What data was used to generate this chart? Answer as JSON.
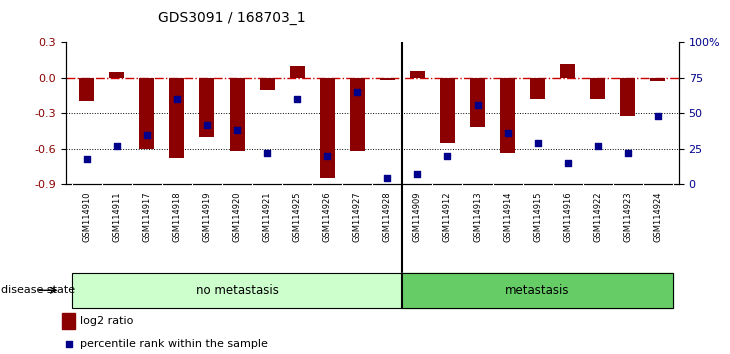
{
  "title": "GDS3091 / 168703_1",
  "samples": [
    "GSM114910",
    "GSM114911",
    "GSM114917",
    "GSM114918",
    "GSM114919",
    "GSM114920",
    "GSM114921",
    "GSM114925",
    "GSM114926",
    "GSM114927",
    "GSM114928",
    "GSM114909",
    "GSM114912",
    "GSM114913",
    "GSM114914",
    "GSM114915",
    "GSM114916",
    "GSM114922",
    "GSM114923",
    "GSM114924"
  ],
  "log2_ratio": [
    -0.2,
    0.05,
    -0.6,
    -0.68,
    -0.5,
    -0.62,
    -0.1,
    0.1,
    -0.85,
    -0.62,
    -0.02,
    0.06,
    -0.55,
    -0.42,
    -0.64,
    -0.18,
    0.12,
    -0.18,
    -0.32,
    -0.03
  ],
  "percentile": [
    18,
    27,
    35,
    60,
    42,
    38,
    22,
    60,
    20,
    65,
    4,
    7,
    20,
    56,
    36,
    29,
    15,
    27,
    22,
    48
  ],
  "no_metastasis_count": 11,
  "bar_color": "#8B0000",
  "dot_color": "#00008B",
  "dashed_line_color": "#CC0000",
  "grid_line_color": "#000000",
  "ylim_left": [
    -0.9,
    0.3
  ],
  "ylim_right": [
    0,
    100
  ],
  "yticks_left": [
    -0.9,
    -0.6,
    -0.3,
    0.0,
    0.3
  ],
  "yticks_right": [
    0,
    25,
    50,
    75,
    100
  ],
  "ytick_labels_right": [
    "0",
    "25",
    "50",
    "75",
    "100%"
  ],
  "no_metastasis_color": "#ccffcc",
  "metastasis_color": "#66cc66",
  "label_log2": "log2 ratio",
  "label_pct": "percentile rank within the sample",
  "bar_width": 0.5,
  "xticklabel_bg": "#d0d0d0"
}
